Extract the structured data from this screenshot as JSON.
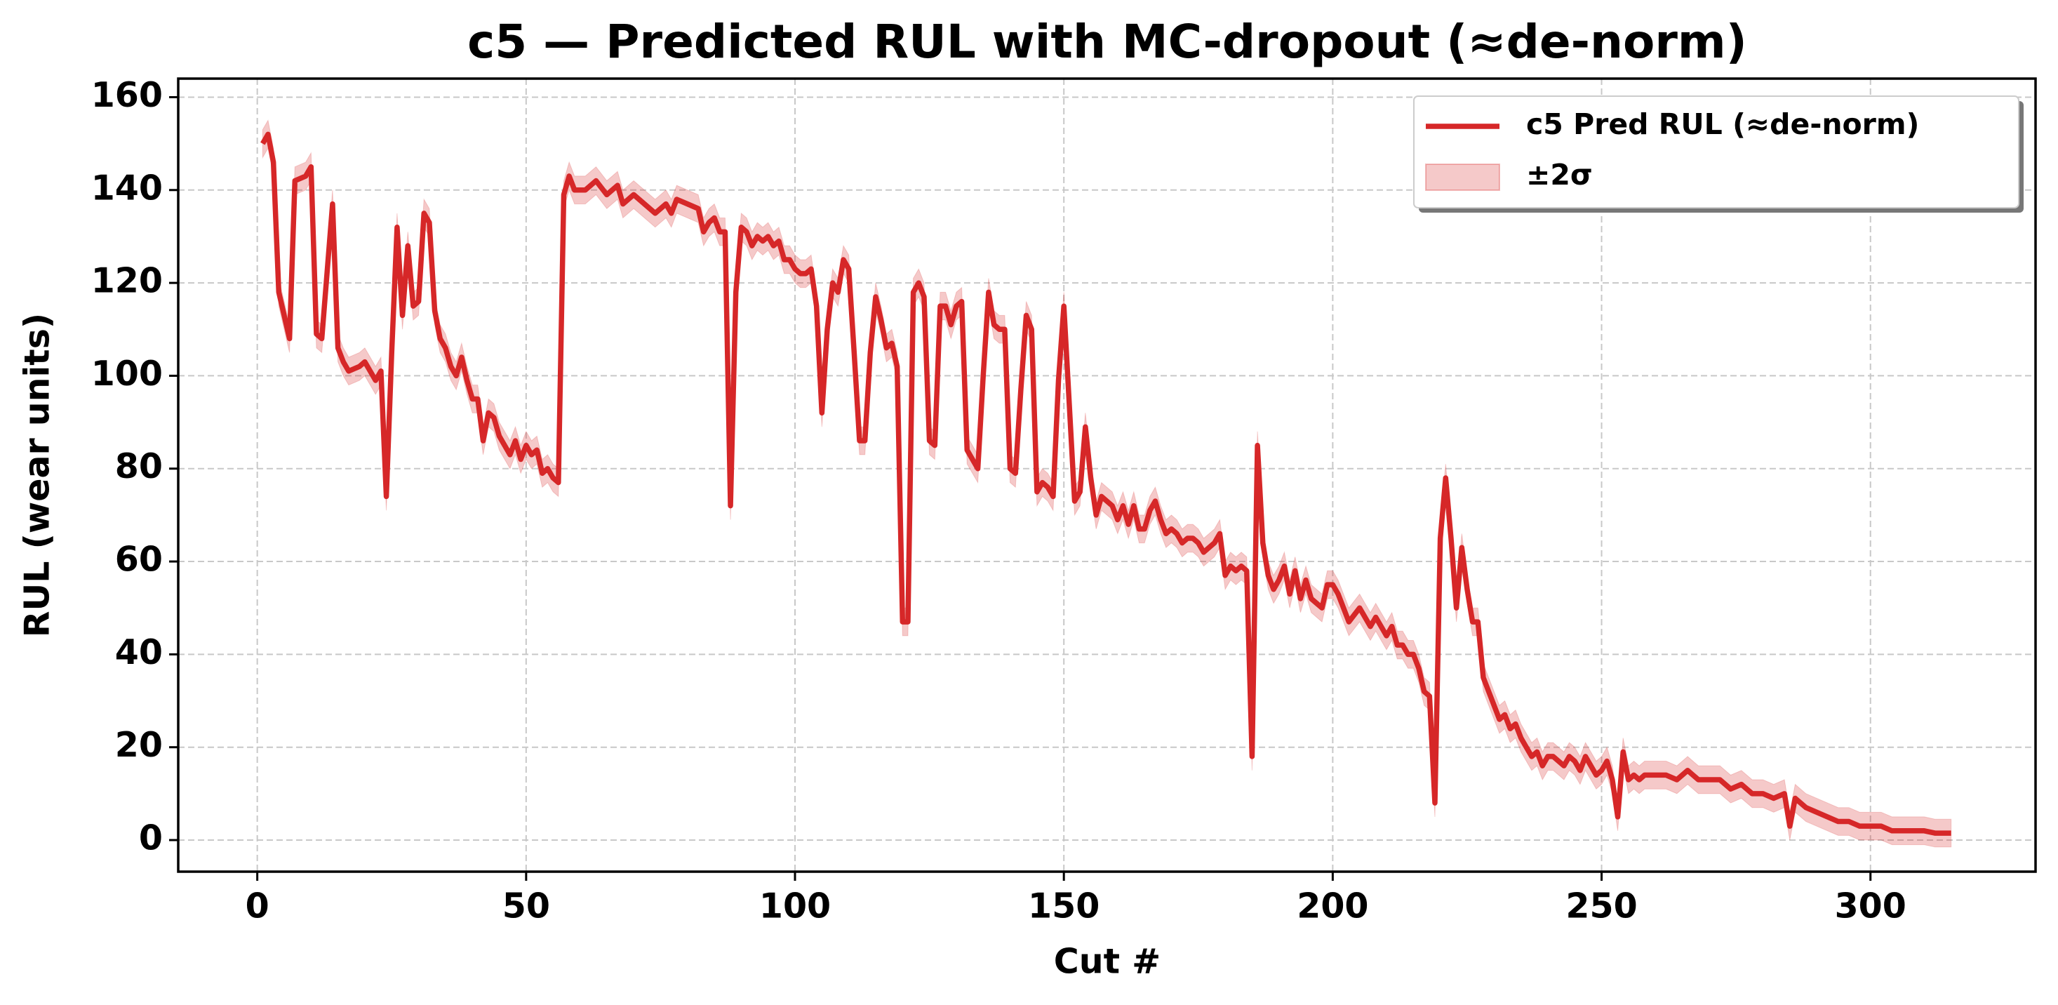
{
  "chart_data": {
    "type": "line",
    "title": "c5 — Predicted RUL with MC-dropout (≈de-norm)",
    "x_label": "Cut #",
    "y_label": "RUL (wear units)",
    "x": [
      1,
      2,
      3,
      4,
      6,
      7,
      9,
      10,
      11,
      12,
      14,
      15,
      16,
      17,
      19,
      20,
      22,
      23,
      24,
      25,
      26,
      27,
      28,
      29,
      30,
      31,
      32,
      33,
      34,
      35,
      36,
      37,
      38,
      39,
      40,
      41,
      42,
      43,
      44,
      45,
      46,
      47,
      48,
      49,
      50,
      51,
      52,
      53,
      54,
      55,
      56,
      57,
      58,
      59,
      61,
      63,
      65,
      67,
      68,
      70,
      72,
      74,
      76,
      77,
      78,
      80,
      82,
      83,
      84,
      85,
      86,
      87,
      88,
      89,
      90,
      91,
      92,
      93,
      94,
      95,
      96,
      97,
      98,
      99,
      100,
      101,
      102,
      103,
      104,
      105,
      106,
      107,
      108,
      109,
      110,
      111,
      112,
      113,
      114,
      115,
      116,
      117,
      118,
      119,
      120,
      121,
      122,
      123,
      124,
      125,
      126,
      127,
      128,
      129,
      130,
      131,
      132,
      133,
      134,
      135,
      136,
      137,
      138,
      139,
      140,
      141,
      142,
      143,
      144,
      145,
      146,
      147,
      148,
      149,
      150,
      151,
      152,
      153,
      154,
      155,
      156,
      157,
      158,
      159,
      160,
      161,
      162,
      163,
      164,
      165,
      166,
      167,
      168,
      169,
      170,
      171,
      172,
      173,
      174,
      175,
      176,
      177,
      178,
      179,
      180,
      181,
      182,
      183,
      184,
      185,
      186,
      187,
      188,
      189,
      190,
      191,
      192,
      193,
      194,
      195,
      196,
      197,
      198,
      199,
      200,
      201,
      203,
      205,
      207,
      208,
      210,
      211,
      212,
      213,
      214,
      215,
      216,
      217,
      218,
      219,
      220,
      221,
      222,
      223,
      224,
      225,
      226,
      227,
      228,
      229,
      230,
      231,
      232,
      233,
      234,
      235,
      236,
      237,
      238,
      239,
      240,
      241,
      242,
      243,
      244,
      245,
      246,
      247,
      248,
      249,
      250,
      251,
      252,
      253,
      254,
      255,
      256,
      257,
      258,
      260,
      262,
      264,
      266,
      268,
      270,
      272,
      274,
      276,
      278,
      280,
      282,
      284,
      285,
      286,
      288,
      290,
      292,
      294,
      296,
      298,
      300,
      302,
      304,
      306,
      308,
      310,
      312,
      315
    ],
    "series": [
      {
        "name": "c5 Pred RUL (≈de-norm)",
        "color": "#d62728",
        "values": [
          150,
          152,
          146,
          118,
          108,
          142,
          143,
          145,
          109,
          108,
          137,
          106,
          103,
          101,
          102,
          103,
          99,
          101,
          74,
          105,
          132,
          113,
          128,
          115,
          116,
          135,
          133,
          114,
          108,
          106,
          102,
          100,
          104,
          99,
          95,
          95,
          86,
          92,
          91,
          87,
          85,
          83,
          86,
          82,
          85,
          83,
          84,
          79,
          80,
          78,
          77,
          139,
          143,
          140,
          140,
          142,
          139,
          141,
          137,
          139,
          137,
          135,
          137,
          135,
          138,
          137,
          136,
          131,
          133,
          134,
          131,
          131,
          72,
          118,
          132,
          131,
          128,
          130,
          129,
          130,
          128,
          129,
          125,
          125,
          123,
          122,
          122,
          123,
          115,
          92,
          110,
          120,
          118,
          125,
          123,
          105,
          86,
          86,
          105,
          117,
          112,
          106,
          107,
          102,
          47,
          47,
          118,
          120,
          117,
          86,
          85,
          115,
          115,
          111,
          115,
          116,
          84,
          82,
          80,
          100,
          118,
          111,
          110,
          110,
          80,
          79,
          97,
          113,
          110,
          75,
          77,
          76,
          74,
          99,
          115,
          94,
          73,
          75,
          89,
          78,
          70,
          74,
          73,
          72,
          69,
          72,
          68,
          72,
          67,
          67,
          71,
          73,
          69,
          66,
          67,
          66,
          64,
          65,
          65,
          64,
          62,
          63,
          64,
          66,
          57,
          59,
          58,
          59,
          58,
          18,
          85,
          64,
          57,
          54,
          56,
          59,
          53,
          58,
          52,
          56,
          52,
          51,
          50,
          55,
          55,
          53,
          47,
          50,
          46,
          48,
          44,
          46,
          42,
          42,
          40,
          40,
          37,
          32,
          31,
          8,
          65,
          78,
          65,
          50,
          63,
          54,
          47,
          47,
          35,
          32,
          29,
          26,
          27,
          24,
          25,
          22,
          20,
          18,
          19,
          16,
          18,
          18,
          17,
          16,
          18,
          17,
          15,
          18,
          16,
          14,
          15,
          17,
          13,
          5,
          19,
          13,
          14,
          13,
          14,
          14,
          14,
          13,
          15,
          13,
          13,
          13,
          11,
          12,
          10,
          10,
          9,
          10,
          3,
          9,
          7,
          6,
          5,
          4,
          4,
          3,
          3,
          3,
          2,
          2,
          2,
          2,
          1.5,
          1.5
        ]
      }
    ],
    "band": {
      "name": "±2σ",
      "color": "#d62728",
      "half_width": 3
    },
    "xlim": [
      -14.7,
      330.7
    ],
    "ylim": [
      -6.8,
      164
    ],
    "xticks": [
      0,
      50,
      100,
      150,
      200,
      250,
      300
    ],
    "yticks": [
      0,
      20,
      40,
      60,
      80,
      100,
      120,
      140,
      160
    ],
    "grid": true,
    "legend": "upper right"
  }
}
